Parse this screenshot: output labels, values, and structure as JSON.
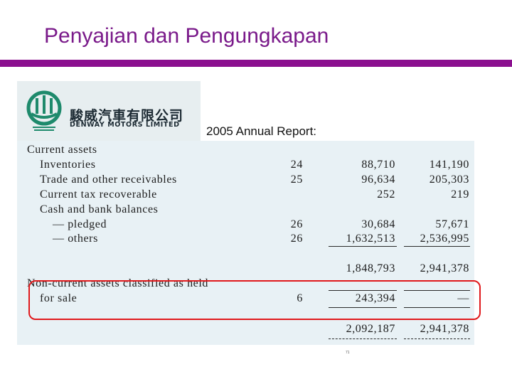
{
  "slide": {
    "title": "Penyajian dan Pengungkapan",
    "report_label": "2005 Annual Report:",
    "page_number": "71",
    "colors": {
      "title": "#7a1a8a",
      "rule": "#8b0f8f",
      "highlight_border": "#e0191c"
    }
  },
  "logo": {
    "chinese_name": "駿威汽車有限公司",
    "english_name": "DENWAY MOTORS LIMITED",
    "icon": "denway-emblem-icon"
  },
  "statement": {
    "rows": [
      {
        "label": "Current assets",
        "note": "",
        "v1": "",
        "v2": ""
      },
      {
        "label": "Inventories",
        "note": "24",
        "v1": "88,710",
        "v2": "141,190"
      },
      {
        "label": "Trade and other receivables",
        "note": "25",
        "v1": "96,634",
        "v2": "205,303"
      },
      {
        "label": "Current tax recoverable",
        "note": "",
        "v1": "252",
        "v2": "219"
      },
      {
        "label": "Cash and bank balances",
        "note": "",
        "v1": "",
        "v2": ""
      },
      {
        "label": "— pledged",
        "note": "26",
        "v1": "30,684",
        "v2": "57,671"
      },
      {
        "label": "— others",
        "note": "26",
        "v1": "1,632,513",
        "v2": "2,536,995"
      },
      {
        "label": "",
        "note": "",
        "v1": "1,848,793",
        "v2": "2,941,378"
      },
      {
        "label": "Non-current assets classified as held",
        "note": "",
        "v1": "",
        "v2": ""
      },
      {
        "label": "for sale",
        "note": "6",
        "v1": "243,394",
        "v2": "—"
      },
      {
        "label": "",
        "note": "",
        "v1": "2,092,187",
        "v2": "2,941,378"
      }
    ]
  }
}
